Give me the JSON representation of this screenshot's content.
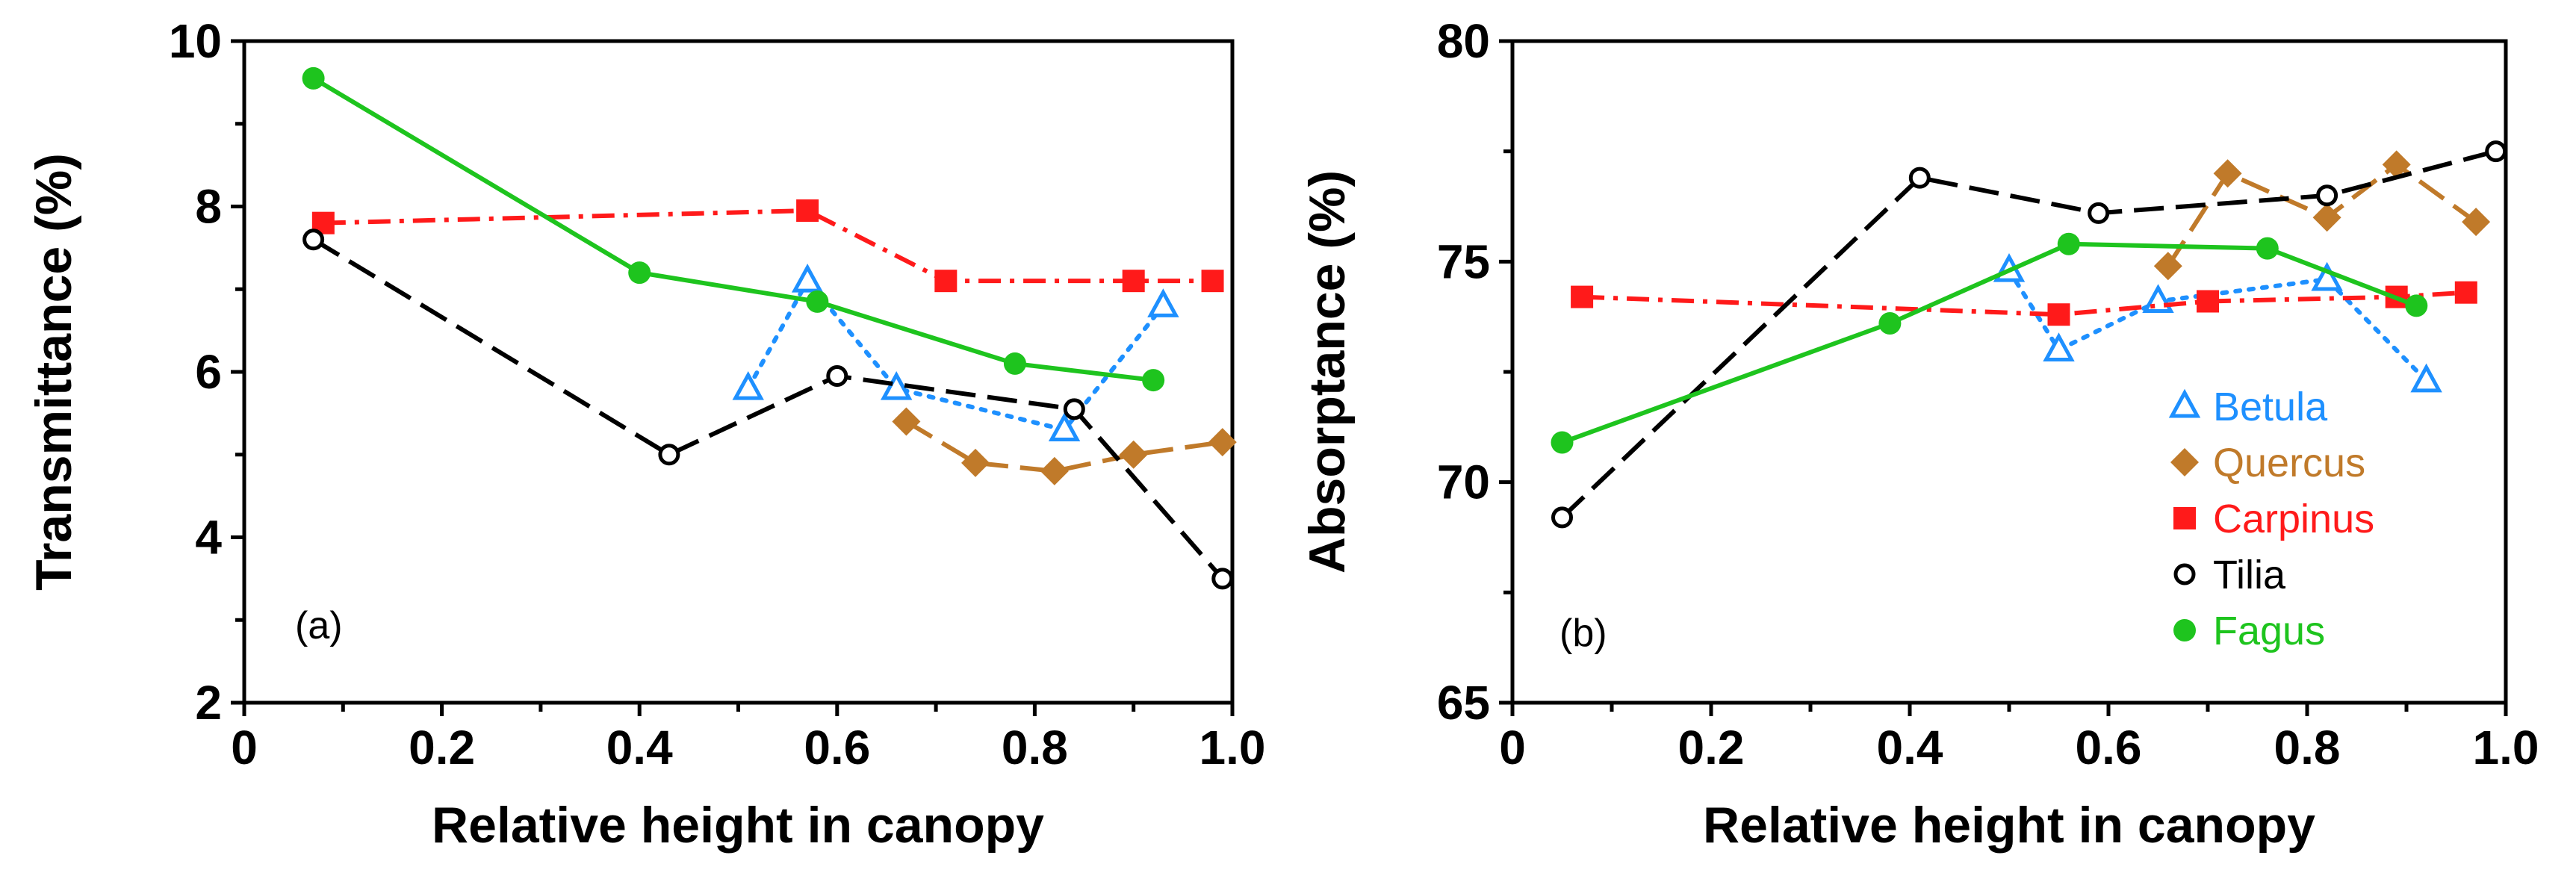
{
  "chart_data": [
    {
      "type": "line",
      "panel_label": "(a)",
      "xlabel": "Relative height in canopy",
      "ylabel": "Transmittance (%)",
      "xlim": [
        0,
        1.0
      ],
      "ylim": [
        2,
        10
      ],
      "xticks": [
        0,
        0.2,
        0.4,
        0.6,
        0.8,
        1.0
      ],
      "xtick_labels": [
        "0",
        "0.2",
        "0.4",
        "0.6",
        "0.8",
        "1.0"
      ],
      "yticks": [
        2,
        4,
        6,
        8,
        10
      ],
      "ytick_labels": [
        "2",
        "4",
        "6",
        "8",
        "10"
      ],
      "series": [
        {
          "name": "Betula",
          "x": [
            0.51,
            0.57,
            0.66,
            0.83,
            0.93
          ],
          "y": [
            5.8,
            7.1,
            5.8,
            5.3,
            6.8
          ]
        },
        {
          "name": "Quercus",
          "x": [
            0.67,
            0.74,
            0.82,
            0.9,
            0.99
          ],
          "y": [
            5.4,
            4.9,
            4.8,
            5.0,
            5.15
          ]
        },
        {
          "name": "Carpinus",
          "x": [
            0.08,
            0.57,
            0.71,
            0.9,
            0.98
          ],
          "y": [
            7.8,
            7.95,
            7.1,
            7.1,
            7.1
          ]
        },
        {
          "name": "Tilia",
          "x": [
            0.07,
            0.43,
            0.6,
            0.84,
            0.99
          ],
          "y": [
            7.6,
            5.0,
            5.95,
            5.55,
            3.5
          ]
        },
        {
          "name": "Fagus",
          "x": [
            0.07,
            0.4,
            0.58,
            0.78,
            0.92
          ],
          "y": [
            9.55,
            7.2,
            6.85,
            6.1,
            5.9
          ]
        }
      ]
    },
    {
      "type": "line",
      "panel_label": "(b)",
      "xlabel": "Relative height in canopy",
      "ylabel": "Absorptance (%)",
      "xlim": [
        0,
        1.0
      ],
      "ylim": [
        65,
        80
      ],
      "xticks": [
        0,
        0.2,
        0.4,
        0.6,
        0.8,
        1.0
      ],
      "xtick_labels": [
        "0",
        "0.2",
        "0.4",
        "0.6",
        "0.8",
        "1.0"
      ],
      "yticks": [
        65,
        70,
        75,
        80
      ],
      "ytick_labels": [
        "65",
        "70",
        "75",
        "80"
      ],
      "legend_position": "lower-right",
      "series": [
        {
          "name": "Betula",
          "x": [
            0.5,
            0.55,
            0.65,
            0.82,
            0.92
          ],
          "y": [
            74.8,
            73.0,
            74.1,
            74.6,
            72.3
          ]
        },
        {
          "name": "Quercus",
          "x": [
            0.66,
            0.72,
            0.82,
            0.89,
            0.97
          ],
          "y": [
            74.9,
            77.0,
            76.0,
            77.2,
            75.9
          ]
        },
        {
          "name": "Carpinus",
          "x": [
            0.07,
            0.55,
            0.7,
            0.89,
            0.96
          ],
          "y": [
            74.2,
            73.8,
            74.1,
            74.2,
            74.3
          ]
        },
        {
          "name": "Tilia",
          "x": [
            0.05,
            0.41,
            0.59,
            0.82,
            0.99
          ],
          "y": [
            69.2,
            76.9,
            76.1,
            76.5,
            77.5
          ]
        },
        {
          "name": "Fagus",
          "x": [
            0.05,
            0.38,
            0.56,
            0.76,
            0.91
          ],
          "y": [
            70.9,
            73.6,
            75.4,
            75.3,
            74.0
          ]
        }
      ]
    }
  ],
  "legend": [
    {
      "name": "Betula",
      "label": "Betula",
      "color": "#1e90ff",
      "marker": "triangle-open",
      "dash": "dotted",
      "text_color": "#1e90ff"
    },
    {
      "name": "Quercus",
      "label": "Quercus",
      "color": "#c07a2a",
      "marker": "diamond",
      "dash": "dashed",
      "text_color": "#c07a2a"
    },
    {
      "name": "Carpinus",
      "label": "Carpinus",
      "color": "#ff1a1a",
      "marker": "square",
      "dash": "dashdot",
      "text_color": "#ff1a1a"
    },
    {
      "name": "Tilia",
      "label": "Tilia",
      "color": "#000000",
      "marker": "circle-open",
      "dash": "dashed",
      "text_color": "#000000"
    },
    {
      "name": "Fagus",
      "label": "Fagus",
      "color": "#1ec41e",
      "marker": "circle",
      "dash": "solid",
      "text_color": "#1ec41e"
    }
  ]
}
